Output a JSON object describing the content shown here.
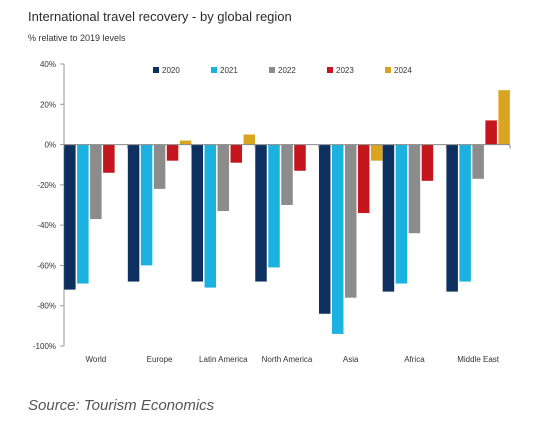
{
  "chart_data": {
    "type": "bar",
    "title": "International travel recovery - by global region",
    "subtitle": "% relative to 2019 levels",
    "source": "Source: Tourism Economics",
    "categories": [
      "World",
      "Europe",
      "Latin America",
      "North America",
      "Asia",
      "Africa",
      "Middle East"
    ],
    "series": [
      {
        "name": "2020",
        "color": "#0d3060",
        "values": [
          -72,
          -68,
          -68,
          -68,
          -84,
          -73,
          -73
        ]
      },
      {
        "name": "2021",
        "color": "#1bb2e0",
        "values": [
          -69,
          -60,
          -71,
          -61,
          -94,
          -69,
          -68
        ]
      },
      {
        "name": "2022",
        "color": "#8c8c8c",
        "values": [
          -37,
          -22,
          -33,
          -30,
          -76,
          -44,
          -17
        ]
      },
      {
        "name": "2023",
        "color": "#c4161c",
        "values": [
          -14,
          -8,
          -9,
          -13,
          -34,
          -18,
          12
        ]
      },
      {
        "name": "2024",
        "color": "#d9a520",
        "values": [
          0,
          2,
          5,
          0,
          -8,
          0,
          27
        ]
      }
    ],
    "ylim": [
      -100,
      40
    ],
    "yticks": [
      "40%",
      "20%",
      "0%",
      "-20%",
      "-40%",
      "-60%",
      "-80%",
      "-100%"
    ],
    "legend": "top-center"
  }
}
